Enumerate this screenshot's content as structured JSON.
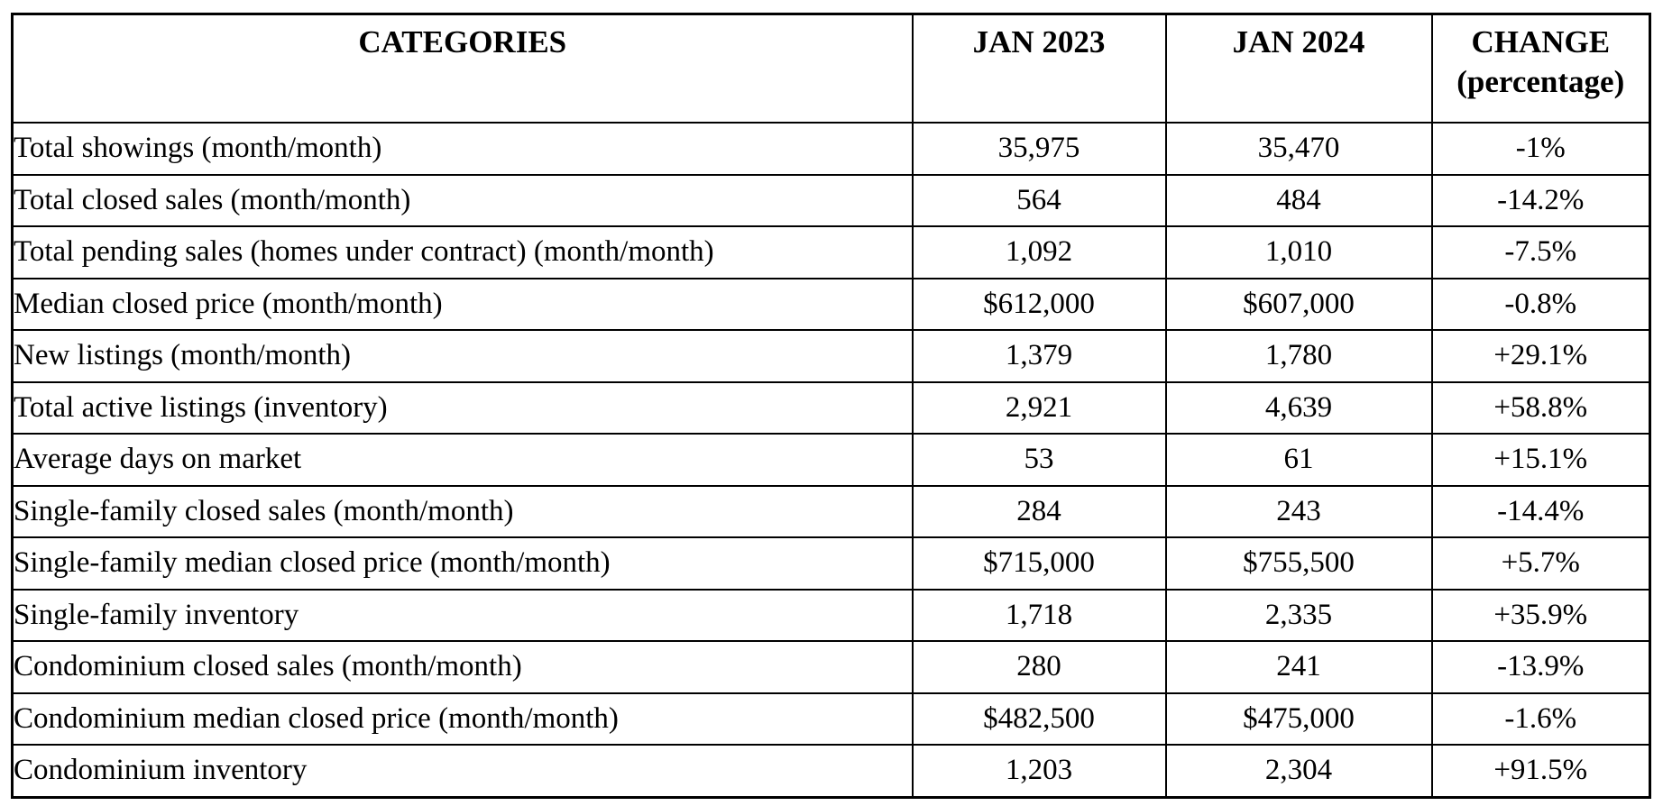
{
  "table": {
    "columns": [
      {
        "label": "CATEGORIES"
      },
      {
        "label": "JAN 2023"
      },
      {
        "label": "JAN 2024"
      },
      {
        "label": "CHANGE",
        "sublabel": "(percentage)"
      }
    ],
    "rows": [
      {
        "category": "Total showings (month/month)",
        "jan2023": "35,975",
        "jan2024": "35,470",
        "change": "-1%"
      },
      {
        "category": "Total closed sales (month/month)",
        "jan2023": "564",
        "jan2024": "484",
        "change": "-14.2%"
      },
      {
        "category": "Total pending sales (homes under contract) (month/month)",
        "jan2023": "1,092",
        "jan2024": "1,010",
        "change": "-7.5%"
      },
      {
        "category": "Median closed price (month/month)",
        "jan2023": "$612,000",
        "jan2024": "$607,000",
        "change": "-0.8%"
      },
      {
        "category": "New listings (month/month)",
        "jan2023": "1,379",
        "jan2024": "1,780",
        "change": "+29.1%"
      },
      {
        "category": "Total active listings (inventory)",
        "jan2023": "2,921",
        "jan2024": "4,639",
        "change": "+58.8%"
      },
      {
        "category": "Average days on market",
        "jan2023": "53",
        "jan2024": "61",
        "change": "+15.1%"
      },
      {
        "category": "Single-family closed sales (month/month)",
        "jan2023": "284",
        "jan2024": "243",
        "change": "-14.4%"
      },
      {
        "category": "Single-family median closed price (month/month)",
        "jan2023": "$715,000",
        "jan2024": "$755,500",
        "change": "+5.7%"
      },
      {
        "category": "Single-family inventory",
        "jan2023": "1,718",
        "jan2024": "2,335",
        "change": "+35.9%"
      },
      {
        "category": "Condominium closed sales (month/month)",
        "jan2023": "280",
        "jan2024": "241",
        "change": "-13.9%"
      },
      {
        "category": "Condominium median closed price (month/month)",
        "jan2023": "$482,500",
        "jan2024": "$475,000",
        "change": "-1.6%"
      },
      {
        "category": "Condominium inventory",
        "jan2023": "1,203",
        "jan2024": "2,304",
        "change": "+91.5%"
      }
    ]
  }
}
